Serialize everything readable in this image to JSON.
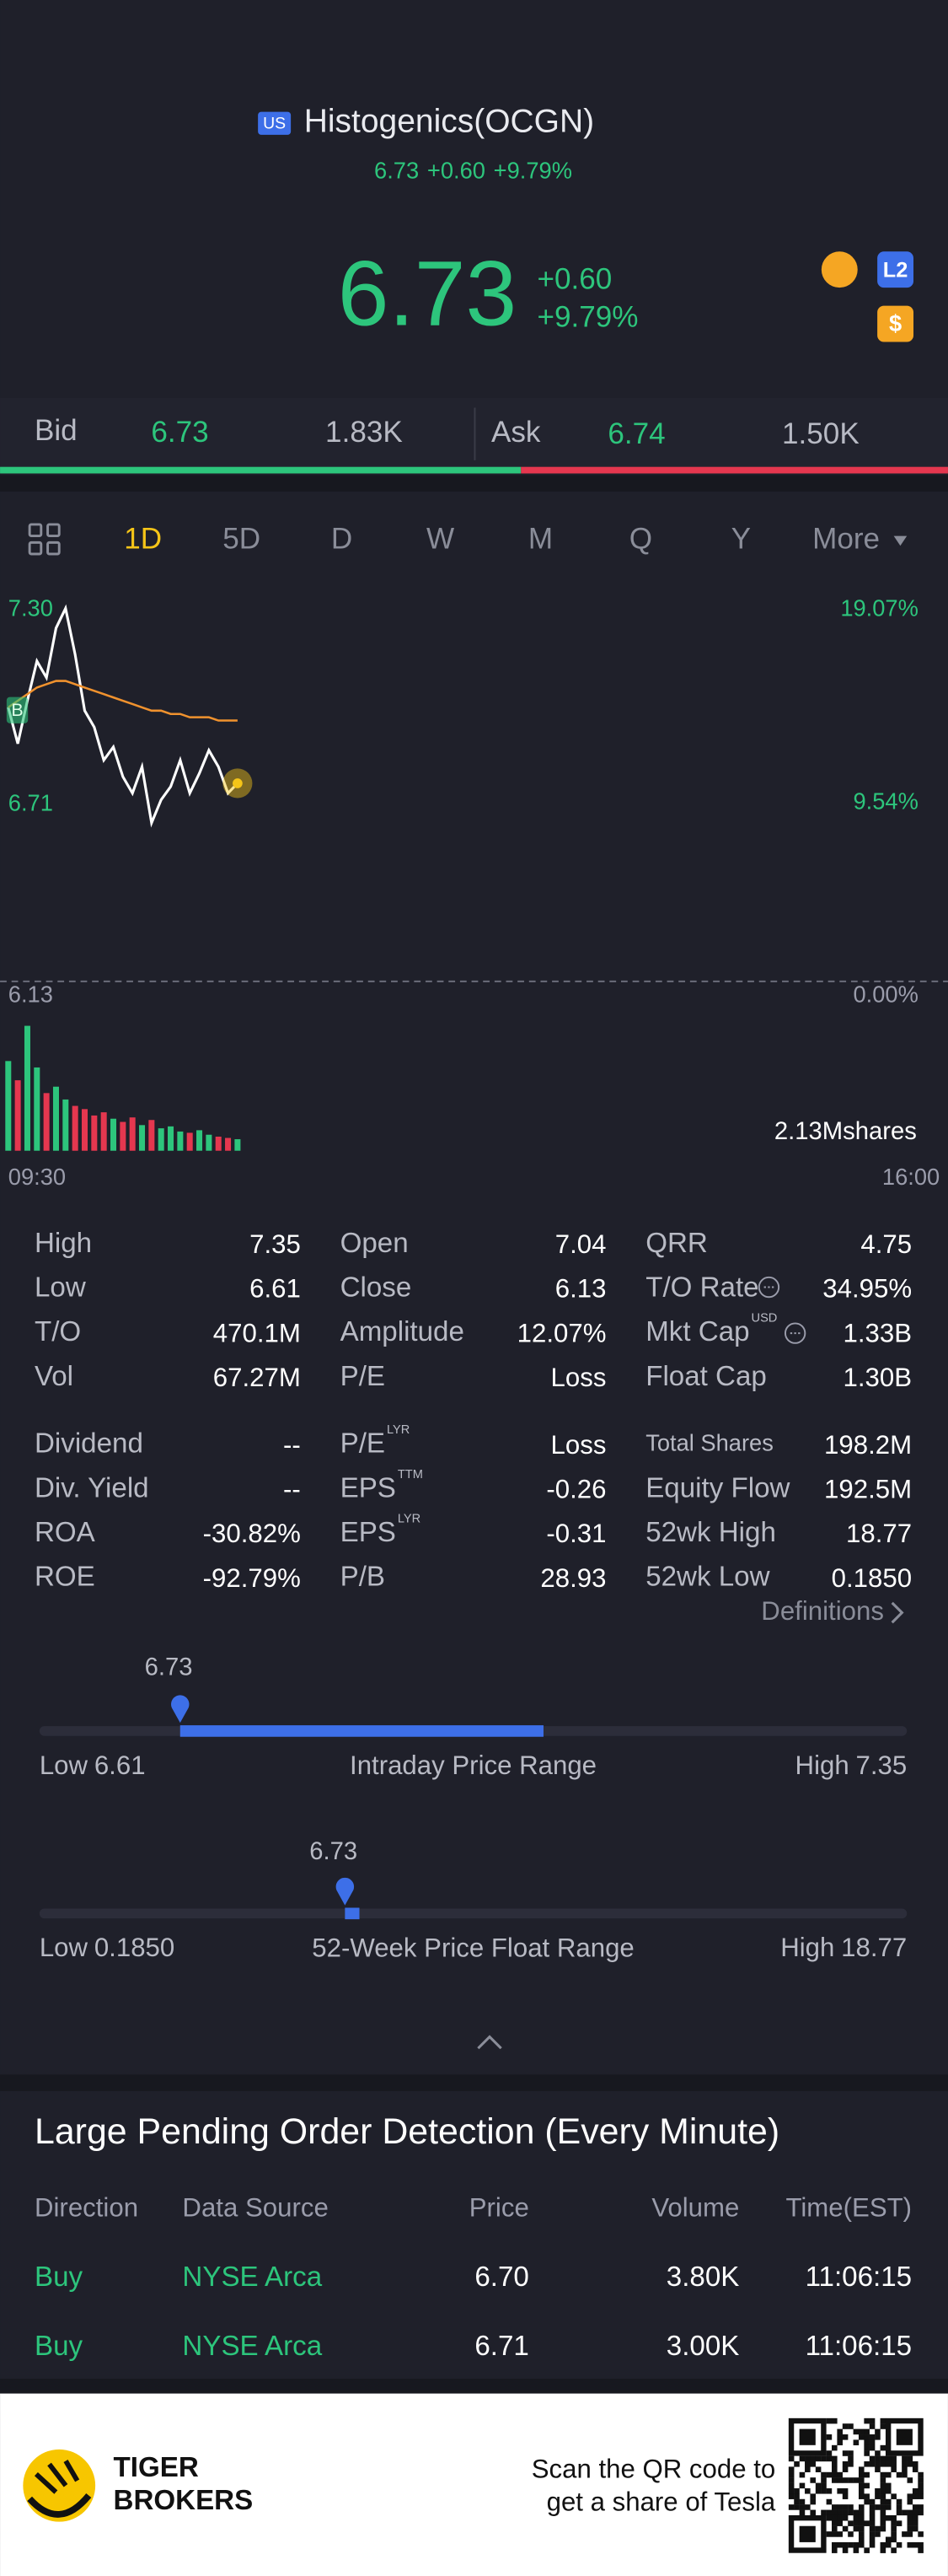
{
  "header": {
    "market": "US",
    "title": "Histogenics(OCGN)",
    "price": "6.73",
    "change": "+0.60",
    "change_pct": "+9.79%"
  },
  "bid_ask": {
    "bid_label": "Bid",
    "bid": "6.73",
    "bid_size": "1.83K",
    "ask_label": "Ask",
    "ask": "6.74",
    "ask_size": "1.50K"
  },
  "tabs": [
    "1D",
    "5D",
    "D",
    "W",
    "M",
    "Q",
    "Y",
    "More"
  ],
  "chart_data": {
    "type": "line",
    "x": [
      "09:30",
      "09:34",
      "09:38",
      "09:42",
      "09:46",
      "09:50",
      "09:54",
      "09:58",
      "10:02",
      "10:06",
      "10:10",
      "10:14",
      "10:18",
      "10:22",
      "10:26",
      "10:30",
      "10:34",
      "10:38",
      "10:42",
      "10:46",
      "10:50",
      "10:54",
      "10:58",
      "11:02",
      "11:06"
    ],
    "xlim": [
      "09:30",
      "16:00"
    ],
    "xticks": [
      "09:30",
      "16:00"
    ],
    "ylim": [
      6.13,
      7.3
    ],
    "yticks": [
      {
        "value": 7.3,
        "label": "7.30"
      },
      6.71,
      6.13
    ],
    "y2lim": [
      0,
      19.07
    ],
    "y2ticks": [
      {
        "value": 19.07,
        "label": "19.07%"
      },
      {
        "value": 9.54,
        "label": "9.54%"
      },
      {
        "value": 0,
        "label": "0.00%"
      }
    ],
    "annotations": [
      "B"
    ],
    "series": [
      {
        "color": "#ffffff",
        "values": [
          6.96,
          6.85,
          6.98,
          7.1,
          7.05,
          7.2,
          7.26,
          7.12,
          6.95,
          6.9,
          6.8,
          6.84,
          6.75,
          6.7,
          6.78,
          6.61,
          6.68,
          6.72,
          6.8,
          6.7,
          6.76,
          6.83,
          6.78,
          6.7,
          6.73
        ]
      },
      {
        "color": "#f0922e",
        "values": [
          6.96,
          6.98,
          7.0,
          7.02,
          7.03,
          7.04,
          7.04,
          7.03,
          7.02,
          7.01,
          7.0,
          6.99,
          6.98,
          6.97,
          6.96,
          6.95,
          6.95,
          6.94,
          6.94,
          6.93,
          6.93,
          6.93,
          6.92,
          6.92,
          6.92
        ]
      }
    ],
    "volume": {
      "up_color": "#2dc57c",
      "down_color": "#e5374f",
      "ylim": [
        0,
        2130000
      ],
      "yticks": [
        {
          "value": 2130000,
          "label": "2.13Mshares"
        }
      ],
      "values": [
        1400000,
        1100000,
        1950000,
        1300000,
        900000,
        1000000,
        800000,
        700000,
        650000,
        550000,
        600000,
        500000,
        450000,
        520000,
        400000,
        480000,
        350000,
        380000,
        300000,
        280000,
        320000,
        250000,
        220000,
        200000,
        180000
      ]
    }
  },
  "stats": [
    [
      {
        "label": "High",
        "value": "7.35"
      },
      {
        "label": "Low",
        "value": "6.61"
      },
      {
        "label": "T/O",
        "value": "470.1M"
      },
      {
        "label": "Vol",
        "value": "67.27M"
      },
      {
        "label": "Dividend",
        "value": "--"
      },
      {
        "label": "Div. Yield",
        "value": "--"
      },
      {
        "label": "ROA",
        "value": "-30.82%"
      },
      {
        "label": "ROE",
        "value": "-92.79%"
      }
    ],
    [
      {
        "label": "Open",
        "value": "7.04"
      },
      {
        "label": "Close",
        "value": "6.13"
      },
      {
        "label": "Amplitude",
        "value": "12.07%"
      },
      {
        "label": "P/E",
        "value": "Loss"
      },
      {
        "label": "P/E",
        "sup": "LYR",
        "value": "Loss"
      },
      {
        "label": "EPS",
        "sup": "TTM",
        "value": "-0.26"
      },
      {
        "label": "EPS",
        "sup": "LYR",
        "value": "-0.31"
      },
      {
        "label": "P/B",
        "value": "28.93"
      }
    ],
    [
      {
        "label": "QRR",
        "value": "4.75"
      },
      {
        "label": "T/O Rate",
        "value": "34.95%"
      },
      {
        "label": "Mkt Cap",
        "sup": "USD",
        "value": "1.33B"
      },
      {
        "label": "Float Cap",
        "value": "1.30B"
      },
      {
        "label": "Total Shares",
        "value": "198.2M"
      },
      {
        "label": "Equity Flow",
        "value": "192.5M"
      },
      {
        "label": "52wk High",
        "value": "18.77"
      },
      {
        "label": "52wk Low",
        "value": "0.1850"
      }
    ]
  ],
  "definitions": "Definitions",
  "ranges": [
    {
      "current": "6.73",
      "low_label": "Low",
      "low": "6.61",
      "title": "Intraday Price Range",
      "high_label": "High",
      "high": "7.35"
    },
    {
      "current": "6.73",
      "low_label": "Low",
      "low": "0.1850",
      "title": "52-Week Price Float Range",
      "high_label": "High",
      "high": "18.77"
    }
  ],
  "orders": {
    "title": "Large Pending Order Detection (Every Minute)",
    "columns": [
      "Direction",
      "Data Source",
      "Price",
      "Volume",
      "Time(EST)"
    ],
    "rows": [
      [
        "Buy",
        "NYSE Arca",
        "6.70",
        "3.80K",
        "11:06:15"
      ],
      [
        "Buy",
        "NYSE Arca",
        "6.71",
        "3.00K",
        "11:06:15"
      ]
    ]
  },
  "banner": {
    "brand": [
      "TIGER",
      "BROKERS"
    ],
    "text": [
      "Scan the QR code to",
      "get a share of Tesla"
    ]
  }
}
